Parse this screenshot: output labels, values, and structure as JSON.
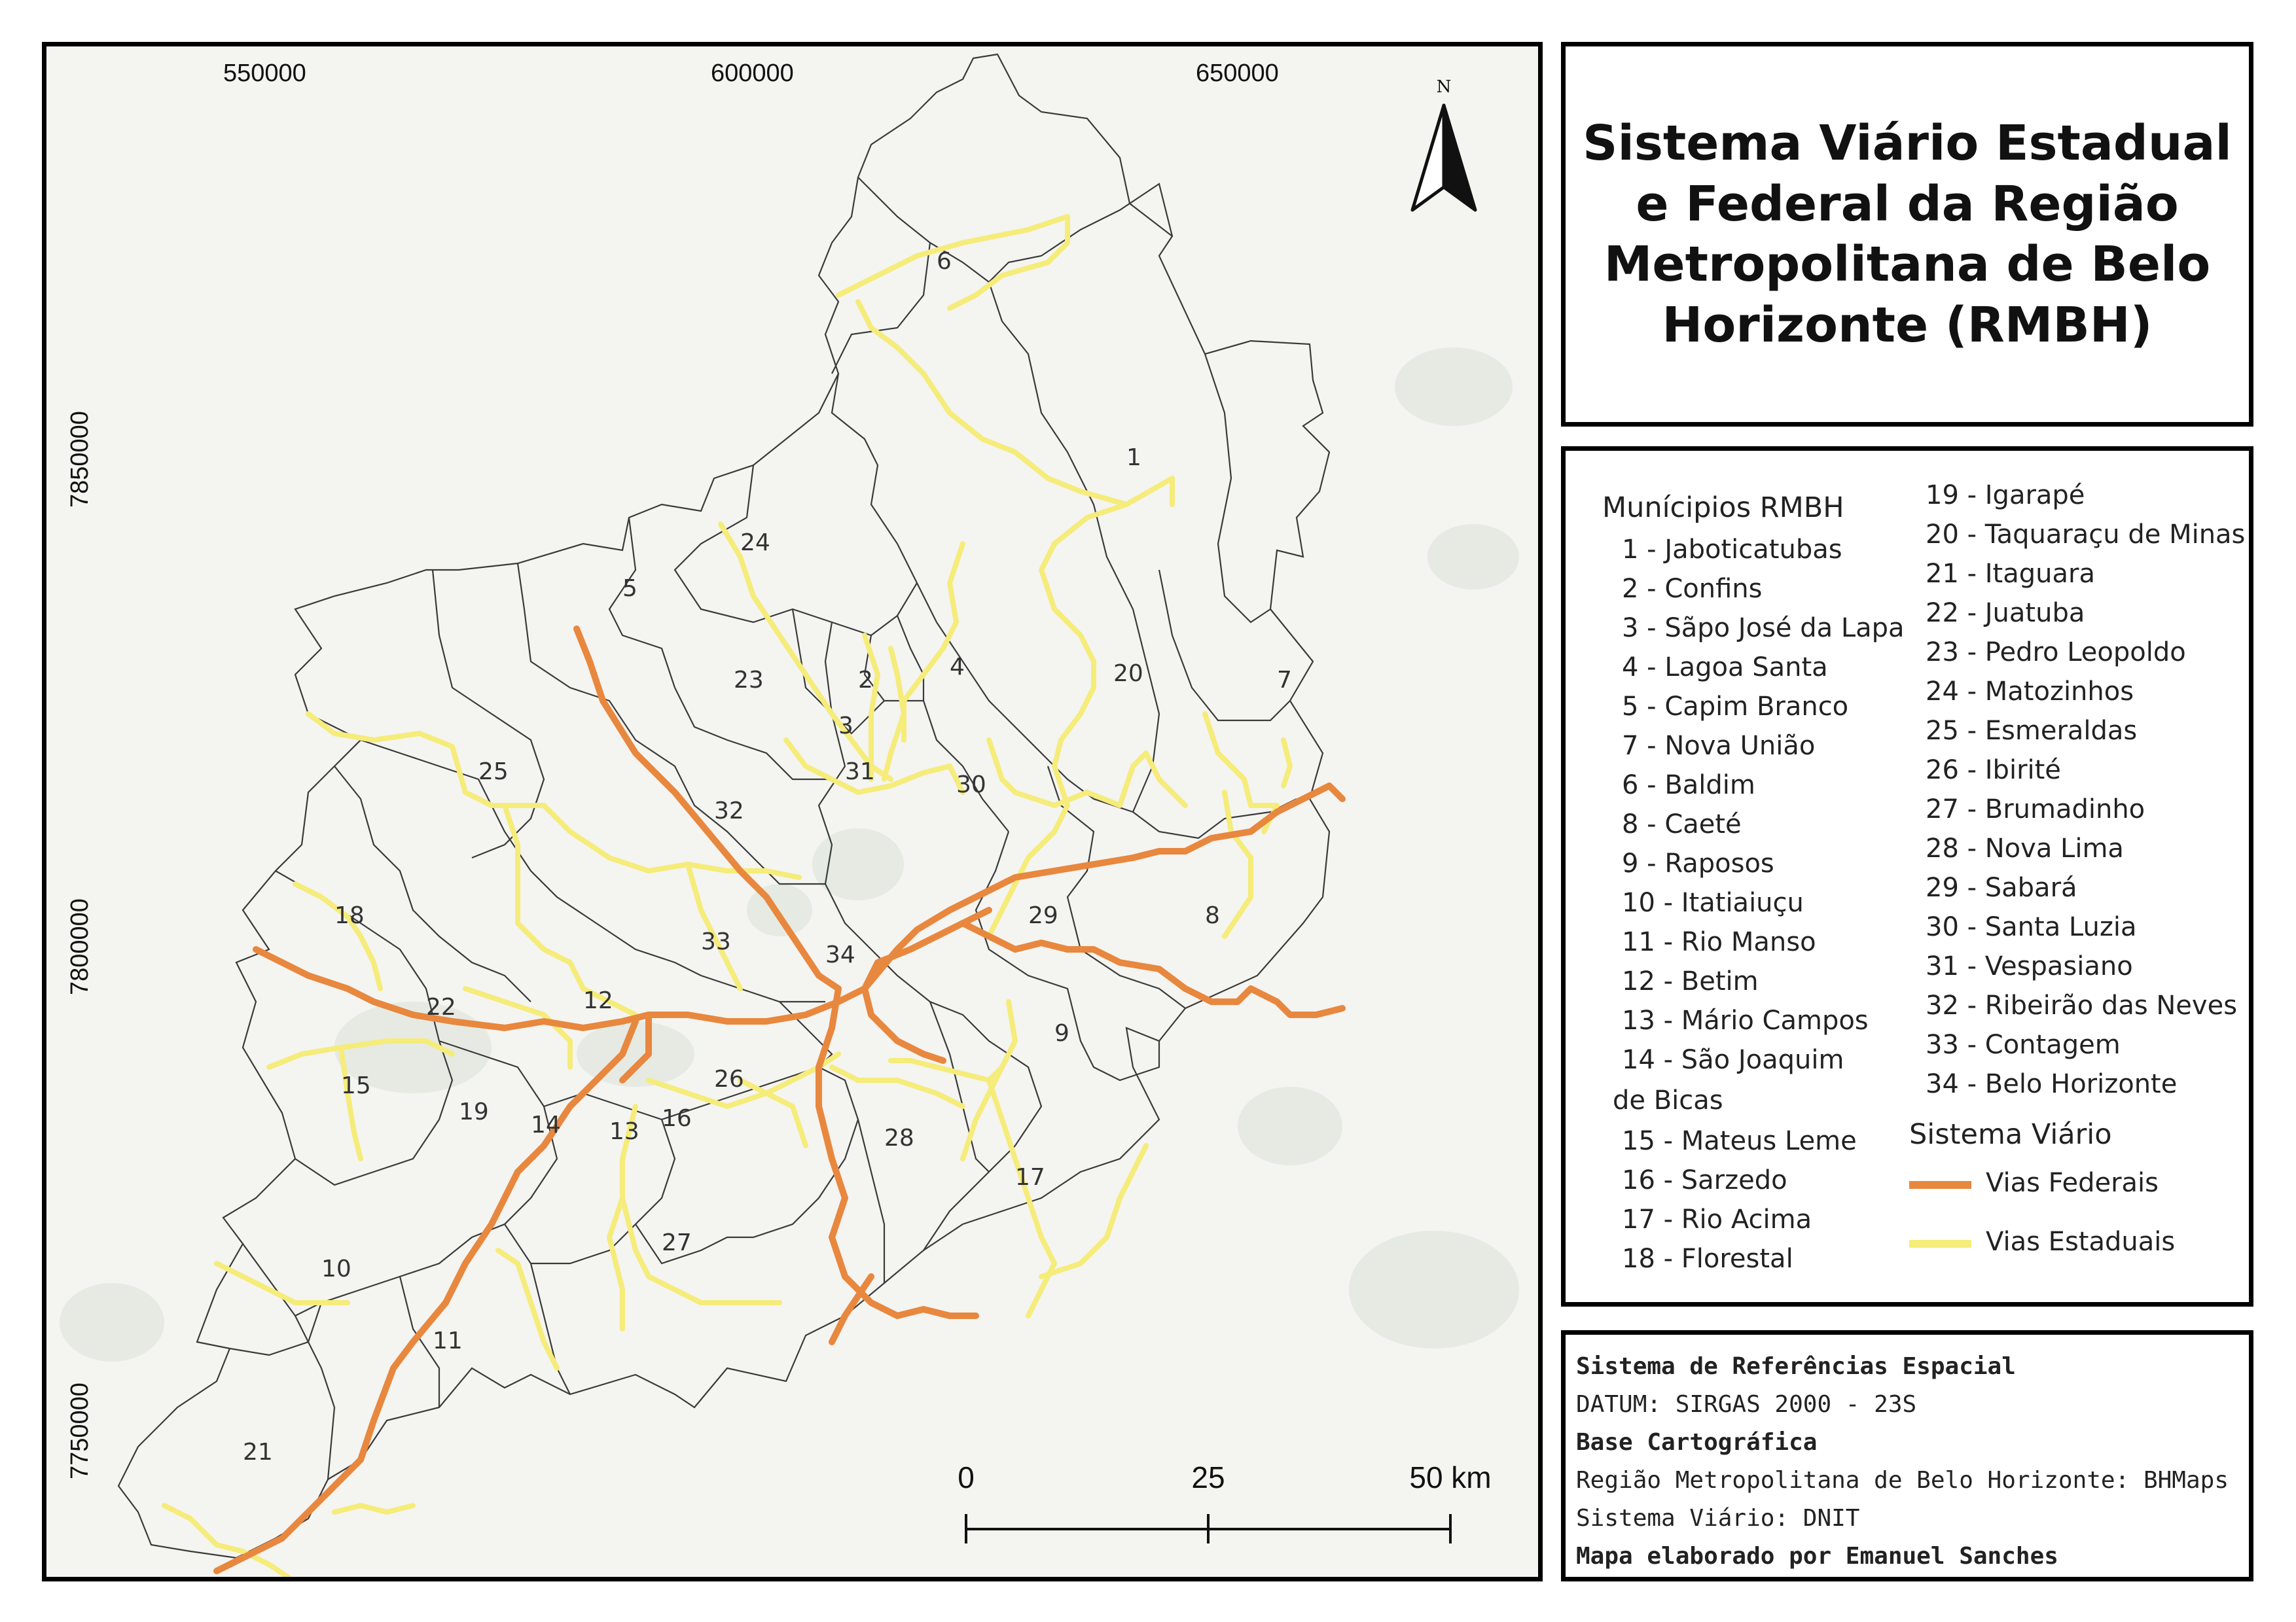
{
  "map": {
    "x_coordinates": [
      "550000",
      "600000",
      "650000"
    ],
    "y_coordinates": [
      "7850000",
      "7800000",
      "7750000"
    ],
    "north_label": "N",
    "scale": {
      "ticks": [
        "0",
        "25",
        "50 km"
      ]
    },
    "municipality_labels": [
      "1",
      "2",
      "3",
      "4",
      "5",
      "6",
      "7",
      "8",
      "9",
      "10",
      "11",
      "12",
      "13",
      "14",
      "15",
      "16",
      "17",
      "18",
      "19",
      "20",
      "21",
      "22",
      "23",
      "24",
      "25",
      "26",
      "27",
      "28",
      "29",
      "30",
      "31",
      "32",
      "33",
      "34"
    ],
    "colors": {
      "background": "#f4f4f1",
      "boundary": "#3a3a3a",
      "federal_road": "#e8873e",
      "state_road": "#f5ec7a",
      "forest": "#dfe6dd"
    }
  },
  "title": "Sistema Viário Estadual e Federal da Região Metropolitana de Belo Horizonte (RMBH)",
  "legend": {
    "municipalities_heading": "Munícipios RMBH",
    "municipalities": [
      "1 - Jaboticatubas",
      "2 - Confins",
      "3 - Sãpo José da Lapa",
      "4 - Lagoa Santa",
      "5 - Capim Branco",
      "7 - Nova União",
      "6 - Baldim",
      "8 - Caeté",
      "9 - Raposos",
      "10 - Itatiaiuçu",
      "11 - Rio Manso",
      "12 - Betim",
      "13 - Mário Campos",
      "14 - São Joaquim",
      "de Bicas",
      "15 - Mateus Leme",
      "16 - Sarzedo",
      "17 - Rio Acima",
      "18 - Florestal",
      "19 - Igarapé",
      "20 - Taquaraçu de Minas",
      "21 - Itaguara",
      "22 - Juatuba",
      "23 - Pedro Leopoldo",
      "24 - Matozinhos",
      "25 - Esmeraldas",
      "26 - Ibirité",
      "27 - Brumadinho",
      "28 - Nova Lima",
      "29 - Sabará",
      "30 - Santa Luzia",
      "31 - Vespasiano",
      "32 - Ribeirão das Neves",
      "33 - Contagem",
      "34 - Belo Horizonte"
    ],
    "roads_heading": "Sistema Viário",
    "roads": [
      {
        "label": "Vias Federais",
        "color": "#e8873e"
      },
      {
        "label": "Vias Estaduais",
        "color": "#f5ec7a"
      }
    ]
  },
  "reference": {
    "srs_heading": "Sistema de Referências Espacial",
    "datum": "DATUM: SIRGAS 2000 - 23S",
    "base_heading": "Base Cartográfica",
    "base_source": "Região Metropolitana de Belo Horizonte: BHMaps",
    "roads_source": "Sistema Viário: DNIT",
    "author": "Mapa elaborado por Emanuel Sanches"
  }
}
